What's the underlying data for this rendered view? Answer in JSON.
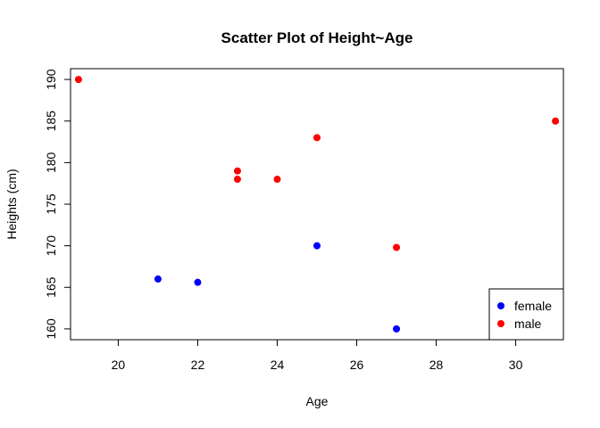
{
  "chart_data": {
    "type": "scatter",
    "title": "Scatter Plot of Height~Age",
    "xlabel": "Age",
    "ylabel": "Heights (cm)",
    "xlim": [
      18.8,
      31.2
    ],
    "ylim": [
      158.7,
      191.3
    ],
    "xticks": [
      20,
      22,
      24,
      26,
      28,
      30
    ],
    "yticks": [
      160,
      165,
      170,
      175,
      180,
      185,
      190
    ],
    "grid": false,
    "legend_position": "bottom-right",
    "series": [
      {
        "name": "female",
        "color": "#0000ff",
        "points": [
          {
            "x": 21,
            "y": 166
          },
          {
            "x": 22,
            "y": 165.6
          },
          {
            "x": 25,
            "y": 170
          },
          {
            "x": 27,
            "y": 160
          }
        ]
      },
      {
        "name": "male",
        "color": "#ff0000",
        "points": [
          {
            "x": 19,
            "y": 190
          },
          {
            "x": 23,
            "y": 179
          },
          {
            "x": 23,
            "y": 178
          },
          {
            "x": 24,
            "y": 178
          },
          {
            "x": 25,
            "y": 183
          },
          {
            "x": 27,
            "y": 169.8
          },
          {
            "x": 31,
            "y": 185
          }
        ]
      }
    ]
  }
}
